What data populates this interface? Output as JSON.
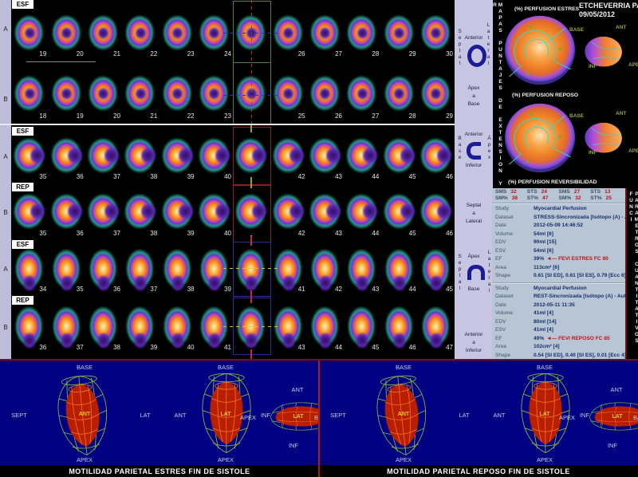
{
  "patient": {
    "name": "ETCHEVERRIA PAT",
    "date": "09/05/2012"
  },
  "colors": {
    "selection_green": "#5d7a33",
    "selection_red": "#8b2020",
    "selection_blue": "#2a2a99",
    "score_red": "#c11212",
    "navy_panel": "#000082",
    "sidebar_lavender": "#c6c6e2"
  },
  "slice_viewer": {
    "sections": [
      {
        "tabs": [
          "ESF"
        ],
        "rows": [
          {
            "letter": "A",
            "shape": "donut",
            "numbers": [
              "19",
              "20",
              "21",
              "22",
              "23",
              "24",
              "",
              "26",
              "27",
              "28",
              "29",
              "30"
            ]
          },
          {
            "letter": "B",
            "shape": "donut",
            "numbers": [
              "18",
              "19",
              "20",
              "21",
              "22",
              "23",
              "",
              "25",
              "26",
              "27",
              "28",
              "29"
            ]
          }
        ]
      },
      {
        "tabs": [
          "ESF",
          "REP"
        ],
        "rows": [
          {
            "letter": "A",
            "shape": "cright",
            "numbers": [
              "35",
              "36",
              "37",
              "38",
              "39",
              "40",
              "",
              "42",
              "43",
              "44",
              "45",
              "46"
            ]
          },
          {
            "letter": "B",
            "shape": "cright",
            "numbers": [
              "35",
              "36",
              "37",
              "38",
              "39",
              "40",
              "",
              "42",
              "43",
              "44",
              "45",
              "46"
            ]
          }
        ]
      },
      {
        "tabs": [
          "ESF",
          "REP"
        ],
        "rows": [
          {
            "letter": "A",
            "shape": "arch",
            "numbers": [
              "34",
              "35",
              "36",
              "37",
              "38",
              "39",
              "",
              "41",
              "42",
              "43",
              "44",
              "45"
            ]
          },
          {
            "letter": "B",
            "shape": "arch",
            "numbers": [
              "36",
              "37",
              "38",
              "39",
              "40",
              "41",
              "",
              "43",
              "44",
              "45",
              "46",
              "47"
            ]
          }
        ]
      }
    ]
  },
  "orientation_sidebar": {
    "sections": [
      {
        "left": "Septal",
        "right": "Lateral",
        "top": "Anterior",
        "bottom": "",
        "caption": "Ápex\na\nBase"
      },
      {
        "left": "Base",
        "right": "Ápex",
        "top": "Anterior",
        "bottom": "Inferior",
        "caption": "Septal\na\nLateral"
      },
      {
        "left": "Septal",
        "right": "Lateral",
        "top": "Ápex",
        "bottom": "Base",
        "caption": "Anterior\na\nInferior"
      }
    ]
  },
  "right_panel": {
    "left_strip": "MAPAS PUNTAJES DE EXTENSION Y R",
    "right_strip": "PARAMETROS CUANTITATIVOS FUNCI",
    "polar_maps": [
      {
        "title": "(%) PERFUSION ESTRES",
        "labels": {
          "base": "BASE",
          "ant": "ANT",
          "inf": "INF",
          "apex": "APE"
        }
      },
      {
        "title": "(%) PERFUSION REPOSO",
        "labels": {
          "base": "BASE",
          "ant": "ANT",
          "inf": "INF",
          "apex": "APE"
        }
      }
    ],
    "reversibility_title": "(%) PERFUSION REVERSIBILIDAD",
    "scores": {
      "row1": [
        {
          "label": "SMS",
          "value": "32"
        },
        {
          "label": "STS",
          "value": "24"
        },
        {
          "label": "SMS",
          "value": "27"
        },
        {
          "label": "STS",
          "value": "13"
        }
      ],
      "row2": [
        {
          "label": "SM%",
          "value": "38"
        },
        {
          "label": "ST%",
          "value": "47"
        },
        {
          "label": "SM%",
          "value": "32"
        },
        {
          "label": "ST%",
          "value": "25"
        }
      ]
    },
    "studies": [
      {
        "rows": [
          {
            "label": "Study",
            "value": "Myocardial Perfusion"
          },
          {
            "label": "Dataset",
            "value": "STRESS-Sincronizada [Isótopo (A) - Autoc"
          },
          {
            "label": "Date",
            "value": "2012-05-09 14:46:52"
          },
          {
            "label": "Volume",
            "value": "54ml [6]"
          },
          {
            "label": "EDV",
            "value": "90ml [15]"
          },
          {
            "label": "ESV",
            "value": "54ml [6]"
          },
          {
            "label": "EF",
            "value": "39%",
            "note": "◄— FEVI ESTRES FC 80"
          },
          {
            "label": "Area",
            "value": "113cm² [6]"
          },
          {
            "label": "Shape",
            "value": "0.61 [SI ED], 0.61 [SI ES], 0.79 [Ecc 6]"
          }
        ]
      },
      {
        "rows": [
          {
            "label": "Study",
            "value": "Myocardial Perfusion"
          },
          {
            "label": "Dataset",
            "value": "REST-Sincronizada [Isótopo (A) - Autocar"
          },
          {
            "label": "Date",
            "value": "2012-05-11 11:35"
          },
          {
            "label": "Volume",
            "value": "41ml [4]"
          },
          {
            "label": "EDV",
            "value": "80ml [14]"
          },
          {
            "label": "ESV",
            "value": "41ml [4]"
          },
          {
            "label": "EF",
            "value": "49%",
            "note": "◄— FEVI REPOSO FC 85"
          },
          {
            "label": "Area",
            "value": "102cm² [4]"
          },
          {
            "label": "Shape",
            "value": "0.54 [SI ED], 0.40 [SI ES], 0.01 [Ecc 4]"
          }
        ]
      }
    ]
  },
  "bottom_panels": [
    {
      "caption": "MOTILIDAD PARIETAL ESTRES FIN DE SISTOLE",
      "hearts": [
        {
          "type": "v",
          "top": "BASE",
          "left": "SEPT",
          "center": "ANT",
          "right": "LAT",
          "bottom": "APEX"
        },
        {
          "type": "v",
          "top": "BASE",
          "left": "ANT",
          "center": "LAT",
          "right": "INF",
          "bottom": "APEX"
        },
        {
          "type": "h",
          "top": "ANT",
          "left": "APEX",
          "center": "LAT",
          "right": "BASE",
          "bottom": "INF"
        }
      ]
    },
    {
      "caption": "MOTILIDAD PARIETAL REPOSO FIN DE SISTOLE",
      "hearts": [
        {
          "type": "v",
          "top": "BASE",
          "left": "SEPT",
          "center": "ANT",
          "right": "LAT",
          "bottom": "APEX"
        },
        {
          "type": "v",
          "top": "BASE",
          "left": "ANT",
          "center": "LAT",
          "right": "INF",
          "bottom": "APEX"
        },
        {
          "type": "h",
          "top": "ANT",
          "left": "APEX",
          "center": "LAT",
          "right": "BASE",
          "bottom": "INF"
        }
      ]
    }
  ]
}
